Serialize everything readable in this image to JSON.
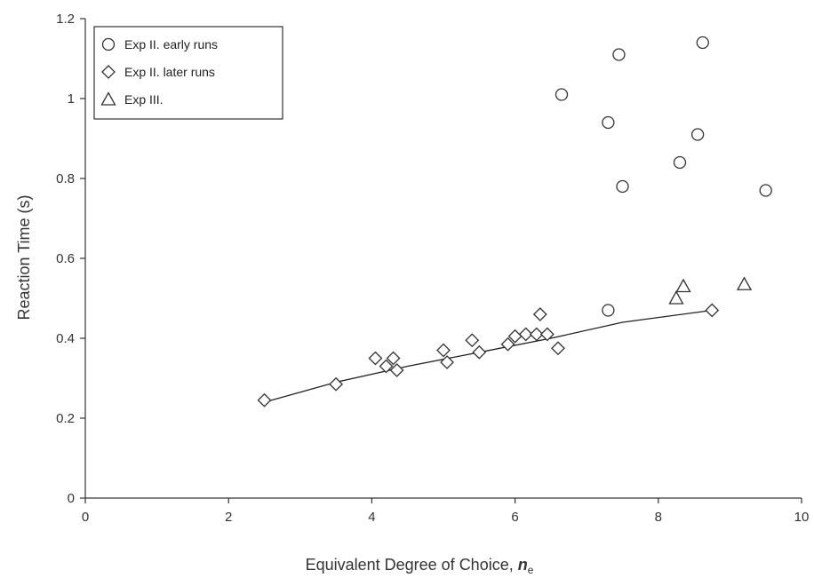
{
  "chart_data": {
    "type": "scatter",
    "title": "",
    "xlabel_main": "Equivalent Degree of Choice, ",
    "xlabel_var": "n",
    "xlabel_sub": "e",
    "ylabel": "Reaction Time (s)",
    "xlim": [
      0,
      10
    ],
    "ylim": [
      0,
      1.2
    ],
    "xticks": [
      0,
      2,
      4,
      6,
      8,
      10
    ],
    "yticks": [
      0,
      0.2,
      0.4,
      0.6,
      0.8,
      1,
      1.2
    ],
    "xtick_labels": [
      "0",
      "2",
      "4",
      "6",
      "8",
      "10"
    ],
    "ytick_labels": [
      "0",
      "0.2",
      "0.4",
      "0.6",
      "0.8",
      "1",
      "1.2"
    ],
    "grid": false,
    "legend_position": "top-left",
    "series": [
      {
        "name": "Exp II. early runs",
        "marker": "circle",
        "points": [
          [
            6.65,
            1.01
          ],
          [
            7.45,
            1.11
          ],
          [
            8.62,
            1.14
          ],
          [
            7.3,
            0.94
          ],
          [
            8.55,
            0.91
          ],
          [
            8.3,
            0.84
          ],
          [
            7.5,
            0.78
          ],
          [
            9.5,
            0.77
          ],
          [
            7.3,
            0.47
          ]
        ]
      },
      {
        "name": "Exp II. later runs",
        "marker": "diamond",
        "points": [
          [
            2.5,
            0.245
          ],
          [
            3.5,
            0.285
          ],
          [
            4.05,
            0.35
          ],
          [
            4.2,
            0.33
          ],
          [
            4.3,
            0.35
          ],
          [
            4.35,
            0.32
          ],
          [
            5.0,
            0.37
          ],
          [
            5.05,
            0.34
          ],
          [
            5.4,
            0.395
          ],
          [
            5.5,
            0.365
          ],
          [
            5.9,
            0.385
          ],
          [
            6.0,
            0.405
          ],
          [
            6.15,
            0.41
          ],
          [
            6.3,
            0.41
          ],
          [
            6.35,
            0.46
          ],
          [
            6.45,
            0.41
          ],
          [
            6.6,
            0.375
          ],
          [
            8.75,
            0.47
          ]
        ]
      },
      {
        "name": "Exp III.",
        "marker": "triangle",
        "points": [
          [
            8.25,
            0.5
          ],
          [
            8.35,
            0.53
          ],
          [
            9.2,
            0.535
          ]
        ]
      }
    ],
    "fit_line": {
      "points": [
        [
          2.5,
          0.24
        ],
        [
          3.5,
          0.29
        ],
        [
          4.5,
          0.33
        ],
        [
          5.5,
          0.365
        ],
        [
          6.5,
          0.4
        ],
        [
          7.5,
          0.44
        ],
        [
          8.75,
          0.47
        ]
      ]
    }
  }
}
